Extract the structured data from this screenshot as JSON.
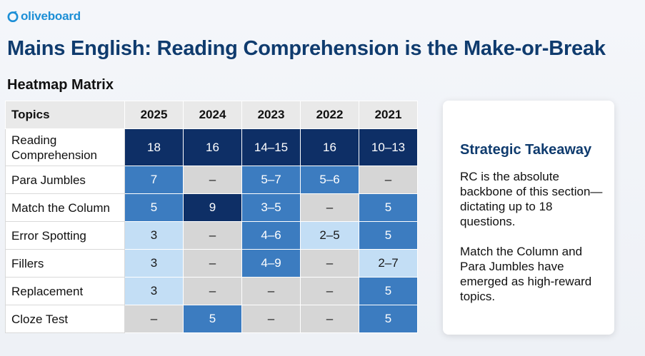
{
  "brand": {
    "name": "oliveboard",
    "color": "#1d8fd6",
    "icon": "olive-logo-icon"
  },
  "page": {
    "title": "Mains English: Reading Comprehension is the Make-or-Break",
    "subtitle": "Heatmap Matrix"
  },
  "table": {
    "header": [
      "Topics",
      "2025",
      "2024",
      "2023",
      "2022",
      "2021"
    ],
    "rows": [
      {
        "topic": "Reading Comprehension",
        "cells": [
          {
            "v": "18",
            "lvl": "dark"
          },
          {
            "v": "16",
            "lvl": "dark"
          },
          {
            "v": "14–15",
            "lvl": "dark"
          },
          {
            "v": "16",
            "lvl": "dark"
          },
          {
            "v": "10–13",
            "lvl": "dark"
          }
        ]
      },
      {
        "topic": "Para Jumbles",
        "cells": [
          {
            "v": "7",
            "lvl": "mid"
          },
          {
            "v": "–",
            "lvl": "none"
          },
          {
            "v": "5–7",
            "lvl": "mid"
          },
          {
            "v": "5–6",
            "lvl": "mid"
          },
          {
            "v": "–",
            "lvl": "none"
          }
        ]
      },
      {
        "topic": "Match the Column",
        "cells": [
          {
            "v": "5",
            "lvl": "mid"
          },
          {
            "v": "9",
            "lvl": "dark"
          },
          {
            "v": "3–5",
            "lvl": "mid"
          },
          {
            "v": "–",
            "lvl": "none"
          },
          {
            "v": "5",
            "lvl": "mid"
          }
        ]
      },
      {
        "topic": "Error Spotting",
        "cells": [
          {
            "v": "3",
            "lvl": "light"
          },
          {
            "v": "–",
            "lvl": "none"
          },
          {
            "v": "4–6",
            "lvl": "mid"
          },
          {
            "v": "2–5",
            "lvl": "light"
          },
          {
            "v": "5",
            "lvl": "mid"
          }
        ]
      },
      {
        "topic": "Fillers",
        "cells": [
          {
            "v": "3",
            "lvl": "light"
          },
          {
            "v": "–",
            "lvl": "none"
          },
          {
            "v": "4–9",
            "lvl": "mid"
          },
          {
            "v": "–",
            "lvl": "none"
          },
          {
            "v": "2–7",
            "lvl": "light"
          }
        ]
      },
      {
        "topic": "Replacement",
        "cells": [
          {
            "v": "3",
            "lvl": "light"
          },
          {
            "v": "–",
            "lvl": "none"
          },
          {
            "v": "–",
            "lvl": "none"
          },
          {
            "v": "–",
            "lvl": "none"
          },
          {
            "v": "5",
            "lvl": "mid"
          }
        ]
      },
      {
        "topic": "Cloze Test",
        "cells": [
          {
            "v": "–",
            "lvl": "none"
          },
          {
            "v": "5",
            "lvl": "mid"
          },
          {
            "v": "–",
            "lvl": "none"
          },
          {
            "v": "–",
            "lvl": "none"
          },
          {
            "v": "5",
            "lvl": "mid"
          }
        ]
      }
    ],
    "colors": {
      "dark": "#0e2f66",
      "mid": "#3c7cc0",
      "light": "#c3def5",
      "none": "#d6d6d6"
    }
  },
  "takeaway": {
    "title": "Strategic Takeaway",
    "paragraphs": [
      "RC is the absolute backbone of this section—dictating up to 18 questions.",
      "Match the Column and Para Jumbles have emerged as high-reward topics."
    ]
  }
}
